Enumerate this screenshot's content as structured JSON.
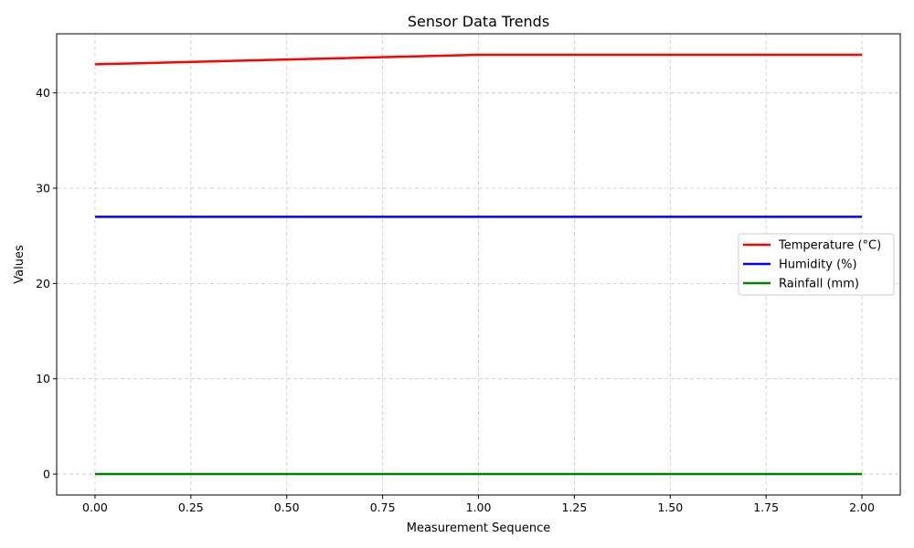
{
  "chart_data": {
    "type": "line",
    "title": "Sensor Data Trends",
    "xlabel": "Measurement Sequence",
    "ylabel": "Values",
    "x": [
      0,
      1,
      2
    ],
    "xlim": [
      -0.1,
      2.1
    ],
    "ylim": [
      -2.2,
      46.2
    ],
    "xticks": [
      0.0,
      0.25,
      0.5,
      0.75,
      1.0,
      1.25,
      1.5,
      1.75,
      2.0
    ],
    "xtick_labels": [
      "0.00",
      "0.25",
      "0.50",
      "0.75",
      "1.00",
      "1.25",
      "1.50",
      "1.75",
      "2.00"
    ],
    "yticks": [
      0,
      10,
      20,
      30,
      40
    ],
    "ytick_labels": [
      "0",
      "10",
      "20",
      "30",
      "40"
    ],
    "grid": true,
    "legend_position": "center-right",
    "series": [
      {
        "name": "Temperature (°C)",
        "values": [
          43,
          44,
          44
        ],
        "color": "#ff0000"
      },
      {
        "name": "Humidity (%)",
        "values": [
          27,
          27,
          27
        ],
        "color": "#0000ff"
      },
      {
        "name": "Rainfall (mm)",
        "values": [
          0,
          0,
          0
        ],
        "color": "#008000"
      }
    ]
  }
}
